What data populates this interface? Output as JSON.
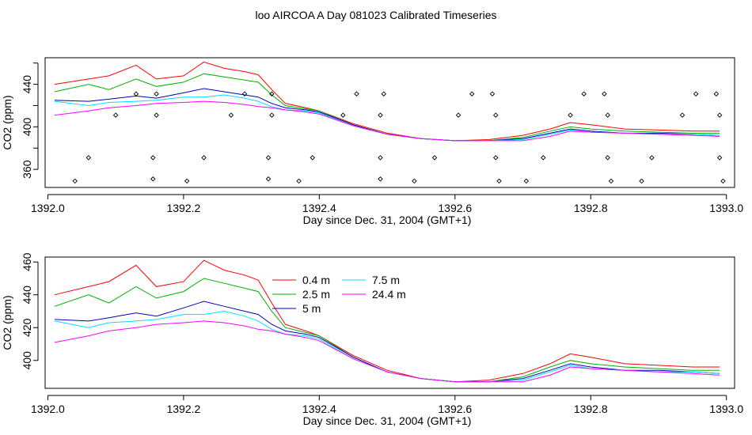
{
  "page": {
    "title": "loo AIRCOA A  Day 081023  Calibrated Timeseries"
  },
  "colors": {
    "0.4 m": "#ff0000",
    "2.5 m": "#00b000",
    "5 m": "#0000c0",
    "7.5 m": "#00e0ff",
    "24.4 m": "#ff00ff"
  },
  "chart_data": [
    {
      "type": "line",
      "title": "",
      "xlabel": "Day since Dec. 31, 2004 (GMT+1)",
      "ylabel": "CO2 (ppm)",
      "xlim": [
        1391.996,
        1393.012
      ],
      "ylim": [
        343,
        465
      ],
      "x_ticks": [
        1392.0,
        1392.2,
        1392.4,
        1392.6,
        1392.8,
        1393.0
      ],
      "x_tick_labels": [
        "1392.0",
        "1392.2",
        "1392.4",
        "1392.6",
        "1392.8",
        "1393.0"
      ],
      "y_ticks": [
        360,
        400,
        440
      ],
      "y_tick_labels": [
        "360",
        "400",
        "440"
      ],
      "y_minor_ticks": [
        380,
        420,
        460
      ],
      "grid": false,
      "legend": null,
      "series": [
        {
          "key": "0.4 m",
          "color": "#ff0000",
          "x": [
            1392.01,
            1392.06,
            1392.09,
            1392.13,
            1392.16,
            1392.2,
            1392.23,
            1392.26,
            1392.29,
            1392.31,
            1392.33,
            1392.35,
            1392.38,
            1392.4,
            1392.45,
            1392.5,
            1392.55,
            1392.6,
            1392.65,
            1392.7,
            1392.74,
            1392.77,
            1392.8,
            1392.85,
            1392.9,
            1392.95,
            1392.99
          ],
          "y": [
            440,
            445,
            448,
            458,
            445,
            448,
            461,
            455,
            452,
            449,
            435,
            422,
            418,
            415,
            403,
            394,
            389,
            387,
            388,
            392,
            398,
            404,
            402,
            398,
            397,
            396,
            396
          ]
        },
        {
          "key": "2.5 m",
          "color": "#00b000",
          "x": [
            1392.01,
            1392.06,
            1392.09,
            1392.13,
            1392.16,
            1392.2,
            1392.23,
            1392.26,
            1392.29,
            1392.31,
            1392.33,
            1392.35,
            1392.38,
            1392.4,
            1392.45,
            1392.5,
            1392.55,
            1392.6,
            1392.65,
            1392.7,
            1392.74,
            1392.77,
            1392.8,
            1392.85,
            1392.9,
            1392.95,
            1392.99
          ],
          "y": [
            433,
            440,
            435,
            445,
            438,
            442,
            450,
            447,
            444,
            442,
            430,
            420,
            417,
            415,
            402,
            393,
            389,
            387,
            387,
            390,
            396,
            400,
            398,
            396,
            395,
            394,
            394
          ]
        },
        {
          "key": "5 m",
          "color": "#0000c0",
          "x": [
            1392.01,
            1392.06,
            1392.09,
            1392.13,
            1392.16,
            1392.2,
            1392.23,
            1392.26,
            1392.29,
            1392.31,
            1392.33,
            1392.35,
            1392.38,
            1392.4,
            1392.45,
            1392.5,
            1392.55,
            1392.6,
            1392.65,
            1392.7,
            1392.74,
            1392.77,
            1392.8,
            1392.85,
            1392.9,
            1392.95,
            1392.99
          ],
          "y": [
            425,
            424,
            426,
            429,
            427,
            432,
            436,
            433,
            430,
            428,
            422,
            418,
            416,
            414,
            402,
            393,
            389,
            387,
            387,
            389,
            394,
            398,
            396,
            394,
            394,
            393,
            392
          ]
        },
        {
          "key": "7.5 m",
          "color": "#00e0ff",
          "x": [
            1392.01,
            1392.06,
            1392.09,
            1392.13,
            1392.16,
            1392.2,
            1392.23,
            1392.26,
            1392.29,
            1392.31,
            1392.33,
            1392.35,
            1392.38,
            1392.4,
            1392.45,
            1392.5,
            1392.55,
            1392.6,
            1392.65,
            1392.7,
            1392.74,
            1392.77,
            1392.8,
            1392.85,
            1392.9,
            1392.95,
            1392.99
          ],
          "y": [
            424,
            420,
            423,
            424,
            425,
            428,
            428,
            430,
            427,
            424,
            419,
            416,
            415,
            413,
            401,
            393,
            389,
            387,
            387,
            388,
            393,
            397,
            395,
            394,
            393,
            393,
            392
          ]
        },
        {
          "key": "24.4 m",
          "color": "#ff00ff",
          "x": [
            1392.01,
            1392.06,
            1392.09,
            1392.13,
            1392.16,
            1392.2,
            1392.23,
            1392.26,
            1392.29,
            1392.31,
            1392.33,
            1392.35,
            1392.38,
            1392.4,
            1392.45,
            1392.5,
            1392.55,
            1392.6,
            1392.65,
            1392.7,
            1392.74,
            1392.77,
            1392.8,
            1392.85,
            1392.9,
            1392.95,
            1392.99
          ],
          "y": [
            411,
            415,
            418,
            420,
            422,
            423,
            424,
            423,
            421,
            419,
            418,
            416,
            414,
            412,
            401,
            393,
            389,
            387,
            387,
            387,
            391,
            396,
            395,
            394,
            393,
            392,
            391
          ]
        }
      ],
      "points": {
        "key": "valve",
        "x": [
          1392.04,
          1392.06,
          1392.1,
          1392.13,
          1392.155,
          1392.155,
          1392.16,
          1392.16,
          1392.205,
          1392.23,
          1392.27,
          1392.29,
          1392.325,
          1392.325,
          1392.33,
          1392.33,
          1392.37,
          1392.39,
          1392.435,
          1392.455,
          1392.49,
          1392.49,
          1392.49,
          1392.495,
          1392.54,
          1392.57,
          1392.605,
          1392.625,
          1392.655,
          1392.66,
          1392.66,
          1392.665,
          1392.705,
          1392.73,
          1392.77,
          1392.79,
          1392.82,
          1392.825,
          1392.825,
          1392.83,
          1392.875,
          1392.89,
          1392.935,
          1392.955,
          1392.985,
          1392.99,
          1392.99,
          1392.995
        ],
        "y": [
          349,
          371,
          411,
          431,
          351,
          371,
          411,
          431,
          349,
          371,
          411,
          431,
          351,
          371,
          411,
          431,
          349,
          371,
          411,
          431,
          351,
          371,
          411,
          431,
          349,
          371,
          411,
          431,
          431,
          411,
          371,
          349,
          349,
          371,
          411,
          431,
          431,
          411,
          371,
          349,
          349,
          371,
          411,
          431,
          431,
          411,
          371,
          349
        ]
      }
    },
    {
      "type": "line",
      "title": "",
      "xlabel": "Day since Dec. 31, 2004 (GMT+1)",
      "ylabel": "CO2 (ppm)",
      "xlim": [
        1391.996,
        1393.012
      ],
      "ylim": [
        383,
        463
      ],
      "x_ticks": [
        1392.0,
        1392.2,
        1392.4,
        1392.6,
        1392.8,
        1393.0
      ],
      "x_tick_labels": [
        "1392.0",
        "1392.2",
        "1392.4",
        "1392.6",
        "1392.8",
        "1393.0"
      ],
      "y_ticks": [
        400,
        420,
        440,
        460
      ],
      "y_tick_labels": [
        "400",
        "420",
        "440",
        "460"
      ],
      "y_minor_ticks": [],
      "grid": false,
      "legend": {
        "placement": "top-center",
        "entries": [
          {
            "label": "0.4 m",
            "color": "#ff0000"
          },
          {
            "label": "2.5 m",
            "color": "#00b000"
          },
          {
            "label": "5 m",
            "color": "#0000c0"
          },
          {
            "label": "7.5 m",
            "color": "#00e0ff"
          },
          {
            "label": "24.4 m",
            "color": "#ff00ff"
          }
        ]
      },
      "series": [
        {
          "key": "0.4 m",
          "color": "#ff0000",
          "x": [
            1392.01,
            1392.06,
            1392.09,
            1392.13,
            1392.16,
            1392.2,
            1392.23,
            1392.26,
            1392.29,
            1392.31,
            1392.33,
            1392.35,
            1392.38,
            1392.4,
            1392.45,
            1392.5,
            1392.55,
            1392.6,
            1392.65,
            1392.7,
            1392.74,
            1392.77,
            1392.8,
            1392.85,
            1392.9,
            1392.95,
            1392.99
          ],
          "y": [
            440,
            445,
            448,
            458,
            445,
            448,
            461,
            455,
            452,
            449,
            435,
            422,
            418,
            415,
            403,
            394,
            389,
            387,
            388,
            392,
            398,
            404,
            402,
            398,
            397,
            396,
            396
          ]
        },
        {
          "key": "2.5 m",
          "color": "#00b000",
          "x": [
            1392.01,
            1392.06,
            1392.09,
            1392.13,
            1392.16,
            1392.2,
            1392.23,
            1392.26,
            1392.29,
            1392.31,
            1392.33,
            1392.35,
            1392.38,
            1392.4,
            1392.45,
            1392.5,
            1392.55,
            1392.6,
            1392.65,
            1392.7,
            1392.74,
            1392.77,
            1392.8,
            1392.85,
            1392.9,
            1392.95,
            1392.99
          ],
          "y": [
            433,
            440,
            435,
            445,
            438,
            442,
            450,
            447,
            444,
            442,
            430,
            420,
            417,
            415,
            402,
            393,
            389,
            387,
            387,
            390,
            396,
            400,
            398,
            396,
            395,
            394,
            394
          ]
        },
        {
          "key": "5 m",
          "color": "#0000c0",
          "x": [
            1392.01,
            1392.06,
            1392.09,
            1392.13,
            1392.16,
            1392.2,
            1392.23,
            1392.26,
            1392.29,
            1392.31,
            1392.33,
            1392.35,
            1392.38,
            1392.4,
            1392.45,
            1392.5,
            1392.55,
            1392.6,
            1392.65,
            1392.7,
            1392.74,
            1392.77,
            1392.8,
            1392.85,
            1392.9,
            1392.95,
            1392.99
          ],
          "y": [
            425,
            424,
            426,
            429,
            427,
            432,
            436,
            433,
            430,
            428,
            422,
            418,
            416,
            414,
            402,
            393,
            389,
            387,
            387,
            389,
            394,
            398,
            396,
            394,
            394,
            393,
            392
          ]
        },
        {
          "key": "7.5 m",
          "color": "#00e0ff",
          "x": [
            1392.01,
            1392.06,
            1392.09,
            1392.13,
            1392.16,
            1392.2,
            1392.23,
            1392.26,
            1392.29,
            1392.31,
            1392.33,
            1392.35,
            1392.38,
            1392.4,
            1392.45,
            1392.5,
            1392.55,
            1392.6,
            1392.65,
            1392.7,
            1392.74,
            1392.77,
            1392.8,
            1392.85,
            1392.9,
            1392.95,
            1392.99
          ],
          "y": [
            424,
            420,
            423,
            424,
            425,
            428,
            428,
            430,
            427,
            424,
            419,
            416,
            415,
            413,
            401,
            393,
            389,
            387,
            387,
            388,
            393,
            397,
            395,
            394,
            393,
            393,
            392
          ]
        },
        {
          "key": "24.4 m",
          "color": "#ff00ff",
          "x": [
            1392.01,
            1392.06,
            1392.09,
            1392.13,
            1392.16,
            1392.2,
            1392.23,
            1392.26,
            1392.29,
            1392.31,
            1392.33,
            1392.35,
            1392.38,
            1392.4,
            1392.45,
            1392.5,
            1392.55,
            1392.6,
            1392.65,
            1392.7,
            1392.74,
            1392.77,
            1392.8,
            1392.85,
            1392.9,
            1392.95,
            1392.99
          ],
          "y": [
            411,
            415,
            418,
            420,
            422,
            423,
            424,
            423,
            421,
            419,
            418,
            416,
            414,
            412,
            401,
            393,
            389,
            387,
            387,
            387,
            391,
            396,
            395,
            394,
            393,
            392,
            391
          ]
        }
      ]
    }
  ]
}
